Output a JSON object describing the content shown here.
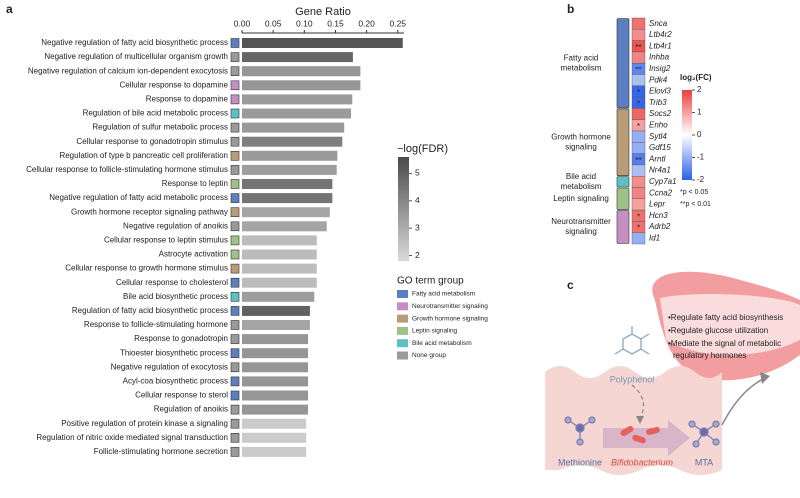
{
  "chart_data": [
    {
      "type": "bar",
      "panel": "a",
      "orientation": "horizontal",
      "xlabel": "Gene Ratio",
      "categories": [
        "Negative regulation of fatty acid biosynthetic process",
        "Negative regulation of multicellular organism growth",
        "Negative regulation of calcium ion-dependent exocytosis",
        "Cellular response to dopamine",
        "Response to dopamine",
        "Regulation of bile acid metabolic process",
        "Regulation of sulfur metabolic process",
        "Cellular response to gonadotropin stimulus",
        "Regulation of type b pancreatic cell proliferation",
        "Cellular response to follicle-stimulating hormone stimulus",
        "Response to leptin",
        "Negative regulation of fatty acid metabolic process",
        "Growth hormone receptor signaling pathway",
        "Negative regulation of anoikis",
        "Cellular response to leptin stimulus",
        "Astrocyte activation",
        "Cellular response to growth hormone stimulus",
        "Cellular response to cholesterol",
        "Bile acid biosynthetic process",
        "Regulation of fatty acid biosynthetic process",
        "Response to follicle-stimulating hormone",
        "Response to gonadotropin",
        "Thioester biosynthetic process",
        "Negative regulation of exocytosis",
        "Acyl-coa biosynthetic process",
        "Cellular response to sterol",
        "Regulation of anoikis",
        "Positive regulation of protein kinase a signaling",
        "Regulation of nitric oxide mediated signal transduction",
        "Follicle-stimulating hormone secretion"
      ],
      "values": [
        0.258,
        0.178,
        0.19,
        0.19,
        0.177,
        0.175,
        0.164,
        0.161,
        0.153,
        0.152,
        0.145,
        0.145,
        0.141,
        0.136,
        0.12,
        0.12,
        0.12,
        0.12,
        0.116,
        0.109,
        0.109,
        0.106,
        0.106,
        0.106,
        0.106,
        0.106,
        0.106,
        0.103,
        0.103,
        0.103
      ],
      "fdr": [
        5.3,
        4.9,
        3.6,
        3.6,
        3.5,
        3.5,
        3.5,
        4.2,
        3.5,
        3.4,
        4.5,
        4.5,
        3.2,
        3.2,
        2.6,
        2.6,
        2.6,
        2.6,
        3.4,
        5.0,
        3.2,
        3.6,
        3.6,
        3.6,
        3.6,
        3.6,
        3.6,
        2.2,
        2.2,
        2.2
      ],
      "groups": [
        "Fatty acid metabolism",
        "None group",
        "None group",
        "Neurotransmitter signaling",
        "Neurotransmitter signaling",
        "Bile acid metabolism",
        "None group",
        "None group",
        "Growth hormone signaling",
        "None group",
        "Leptin signaling",
        "Fatty acid metabolism",
        "Growth hormone signaling",
        "None group",
        "Leptin signaling",
        "Leptin signaling",
        "Growth hormone signaling",
        "Fatty acid metabolism",
        "Bile acid metabolism",
        "Fatty acid metabolism",
        "None group",
        "None group",
        "Fatty acid metabolism",
        "None group",
        "Fatty acid metabolism",
        "Fatty acid metabolism",
        "None group",
        "None group",
        "None group",
        "None group"
      ],
      "xlim": [
        0,
        0.26
      ],
      "xticks": [
        {
          "value": 0,
          "label": "0.00"
        },
        0.05,
        {
          "value": 0.1,
          "label": "0.10"
        },
        0.15,
        {
          "value": 0.2,
          "label": "0.20"
        },
        0.25
      ],
      "colorbar": {
        "title": "−log(FDR)",
        "lim": [
          1.8,
          5.6
        ],
        "ticks": [
          2,
          3,
          4,
          5
        ],
        "colors": [
          "#dadada",
          "#4a4a4a"
        ]
      },
      "legend": {
        "title": "GO term group",
        "names": [
          "Fatty acid metabolism",
          "Neurotransmitter signaling",
          "Growth hormone signaling",
          "Leptin signaling",
          "Bile acid metabolism",
          "None group"
        ],
        "colors": [
          "#5b7fc0",
          "#c58fc3",
          "#b89c78",
          "#9fc088",
          "#5cc0c4",
          "#9a9a9a"
        ]
      }
    },
    {
      "type": "heatmap",
      "panel": "b",
      "groups": [
        {
          "label": [
            "Fatty acid",
            "metabolism"
          ],
          "color": "#5b7fc0",
          "genes": [
            "Snca",
            "Ltb4r2",
            "Ltb4r1",
            "Inhba",
            "Insig2",
            "Pdk4",
            "Elovl3",
            "Trib3"
          ],
          "values": [
            1.5,
            1.2,
            1.8,
            1.3,
            -1.5,
            -0.8,
            -1.9,
            -1.9
          ],
          "significance": [
            null,
            null,
            "**",
            null,
            "**",
            null,
            "*",
            "*"
          ]
        },
        {
          "label": [
            "Growth hormone",
            "signaling"
          ],
          "color": "#b89c78",
          "genes": [
            "Socs2",
            "Enho",
            "Sytl4",
            "Gdf15",
            "Arntl",
            "Nr4a1"
          ],
          "values": [
            1.6,
            1.0,
            -1.0,
            -1.0,
            -1.6,
            -0.8
          ],
          "significance": [
            null,
            "*",
            null,
            null,
            "**",
            null
          ]
        },
        {
          "label": [
            "Bile acid",
            "metabolism"
          ],
          "color": "#5cc0c4",
          "genes": [
            "Cyp7a1"
          ],
          "values": [
            1.2
          ],
          "significance": [
            null
          ]
        },
        {
          "label": [
            "Leptin signaling"
          ],
          "color": "#9fc088",
          "genes": [
            "Ccna2",
            "Lepr"
          ],
          "values": [
            1.3,
            1.0
          ],
          "significance": [
            null,
            null
          ]
        },
        {
          "label": [
            "Neurotransmitter",
            "signaling"
          ],
          "color": "#c58fc3",
          "genes": [
            "Hcn3",
            "Adrb2",
            "Id1"
          ],
          "values": [
            1.5,
            1.5,
            -1.0
          ],
          "significance": [
            "*",
            "*",
            null
          ]
        }
      ],
      "colorbar": {
        "title": "log₂(FC)",
        "lim": [
          -2,
          2
        ],
        "ticks": [
          2,
          1,
          0,
          -1,
          -2
        ],
        "colors": [
          "#2b5fe8",
          "#ffffff",
          "#e8423f"
        ]
      },
      "notes": [
        "*p < 0.05",
        "**p < 0.01"
      ]
    }
  ],
  "diagram": {
    "panel": "c",
    "polyphenol": "Polyphenol",
    "methionine": "Methionine",
    "bacterium": "Bifidobacterium",
    "product": "MTA",
    "effects": [
      "•Regulate fatty acid biosynthesis",
      "•Regulate glucose utilization",
      "•Mediate the signal of metabolic",
      "regulatory hormones"
    ]
  }
}
